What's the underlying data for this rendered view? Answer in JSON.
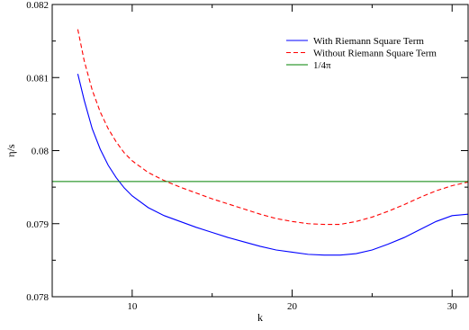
{
  "chart_data": {
    "type": "line",
    "title": "",
    "xlabel": "k",
    "ylabel": "η/s",
    "xlim": [
      5,
      31
    ],
    "ylim": [
      0.078,
      0.082
    ],
    "x_ticks": [
      {
        "value": 10,
        "label": "10"
      },
      {
        "value": 20,
        "label": "20"
      },
      {
        "value": 30,
        "label": "30"
      }
    ],
    "y_ticks": [
      {
        "value": 0.078,
        "label": "0.078"
      },
      {
        "value": 0.079,
        "label": "0.079"
      },
      {
        "value": 0.08,
        "label": "0.08"
      },
      {
        "value": 0.081,
        "label": "0.081"
      },
      {
        "value": 0.082,
        "label": "0.082"
      }
    ],
    "legend_position": "top-right",
    "grid": false,
    "series": [
      {
        "name": "With Riemann Square Term",
        "color": "#0000ff",
        "dash": "solid",
        "x": [
          6.6,
          7,
          7.5,
          8,
          8.5,
          9,
          9.5,
          10,
          11,
          12,
          13,
          14,
          15,
          16,
          17,
          18,
          19,
          20,
          21,
          22,
          22.7,
          23,
          24,
          25,
          26,
          27,
          28,
          29,
          30,
          31
        ],
        "y": [
          0.08105,
          0.08069,
          0.0803,
          0.08002,
          0.0798,
          0.07963,
          0.07949,
          0.07938,
          0.07922,
          0.07911,
          0.07903,
          0.07895,
          0.07888,
          0.07881,
          0.07875,
          0.07869,
          0.07864,
          0.07861,
          0.07858,
          0.07857,
          0.07857,
          0.07857,
          0.07859,
          0.07864,
          0.07872,
          0.07881,
          0.07892,
          0.07903,
          0.07911,
          0.07913
        ]
      },
      {
        "name": "Without Riemann Square Term",
        "color": "#ff0000",
        "dash": "dashed",
        "x": [
          6.6,
          7,
          7.5,
          8,
          8.5,
          9,
          9.5,
          10,
          11,
          12,
          13,
          14,
          15,
          16,
          17,
          18,
          19,
          20,
          21,
          22,
          22.7,
          23,
          24,
          25,
          26,
          27,
          28,
          29,
          30,
          31
        ],
        "y": [
          0.08166,
          0.08123,
          0.08083,
          0.08053,
          0.0803,
          0.08012,
          0.07997,
          0.07986,
          0.0797,
          0.07959,
          0.0795,
          0.07942,
          0.07934,
          0.07927,
          0.0792,
          0.07913,
          0.07907,
          0.07903,
          0.079,
          0.07899,
          0.07899,
          0.07899,
          0.07903,
          0.07909,
          0.07917,
          0.07926,
          0.07936,
          0.07945,
          0.07952,
          0.07957
        ]
      },
      {
        "name": "1/4π",
        "color": "#008000",
        "dash": "solid",
        "x": [
          5,
          31
        ],
        "y": [
          0.079577,
          0.079577
        ]
      }
    ]
  }
}
